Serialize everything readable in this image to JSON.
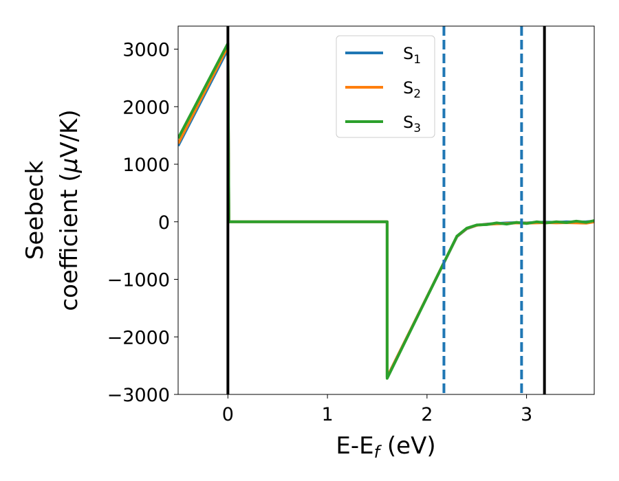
{
  "chart_data": {
    "type": "line",
    "title": "",
    "xlabel": "E-E",
    "xlabel_subscript": "f",
    "xlabel_unit": " (eV)",
    "ylabel_line1": "Seebeck",
    "ylabel_line2_prefix": "coefficient  (",
    "ylabel_line2_mu": "μ",
    "ylabel_line2_suffix": "V/K)",
    "xlim": [
      -0.5,
      3.68
    ],
    "ylim": [
      -3000,
      3400
    ],
    "xticks": [
      0,
      1,
      2,
      3
    ],
    "xtick_labels": [
      "0",
      "1",
      "2",
      "3"
    ],
    "yticks": [
      3000,
      2000,
      1000,
      0,
      -1000,
      -2000,
      -3000
    ],
    "ytick_labels": [
      "3000",
      "2000",
      "1000",
      "0",
      "−1000",
      "−2000",
      "−3000"
    ],
    "grid": false,
    "legend_position": "top-center",
    "series": [
      {
        "name": "S",
        "sub": "1",
        "color": "#1f77b4",
        "x": [
          -0.5,
          0.0,
          0.01,
          1.6,
          1.6,
          2.3,
          2.4,
          2.5,
          2.6,
          2.7,
          2.8,
          2.9,
          3.0,
          3.1,
          3.2,
          3.3,
          3.4,
          3.5,
          3.6,
          3.68
        ],
        "y": [
          1320,
          3000,
          0,
          0,
          -2700,
          -260,
          -120,
          -60,
          -40,
          -30,
          -20,
          -15,
          -20,
          -10,
          -5,
          -10,
          0,
          -5,
          0,
          10
        ]
      },
      {
        "name": "S",
        "sub": "2",
        "color": "#ff7f0e",
        "x": [
          -0.5,
          0.0,
          0.01,
          1.6,
          1.6,
          2.3,
          2.4,
          2.5,
          2.6,
          2.7,
          2.8,
          2.9,
          3.0,
          3.1,
          3.2,
          3.3,
          3.4,
          3.5,
          3.6,
          3.68
        ],
        "y": [
          1360,
          3050,
          0,
          0,
          -2700,
          -255,
          -115,
          -60,
          -45,
          -35,
          -30,
          -20,
          -25,
          -20,
          -15,
          -20,
          -15,
          -20,
          -25,
          0
        ]
      },
      {
        "name": "S",
        "sub": "3",
        "color": "#2ca02c",
        "x": [
          -0.5,
          0.0,
          0.01,
          1.6,
          1.6,
          2.3,
          2.4,
          2.5,
          2.6,
          2.7,
          2.8,
          2.9,
          3.0,
          3.1,
          3.2,
          3.3,
          3.4,
          3.5,
          3.6,
          3.68
        ],
        "y": [
          1450,
          3100,
          0,
          0,
          -2720,
          -250,
          -110,
          -55,
          -50,
          -20,
          -40,
          -10,
          -30,
          0,
          -20,
          0,
          -15,
          10,
          -10,
          20
        ]
      }
    ],
    "vertical_lines": [
      {
        "x": 0.0,
        "style": "solid",
        "color": "#000000"
      },
      {
        "x": 2.17,
        "style": "dashed",
        "color": "#1f77b4"
      },
      {
        "x": 2.95,
        "style": "dashed",
        "color": "#1f77b4"
      },
      {
        "x": 3.18,
        "style": "solid",
        "color": "#000000"
      }
    ]
  }
}
